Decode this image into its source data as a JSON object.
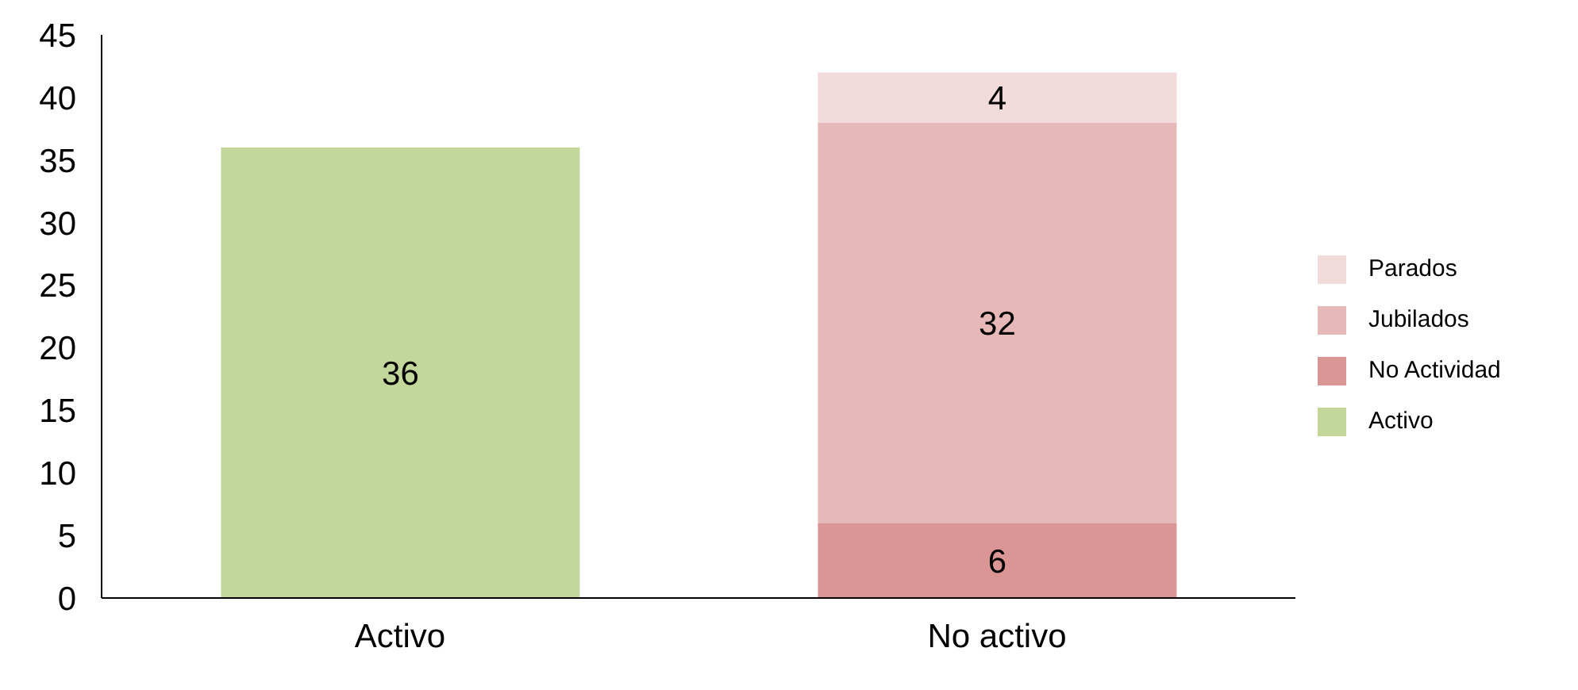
{
  "chart_data": {
    "type": "bar",
    "stacked": true,
    "categories": [
      "Activo",
      "No activo"
    ],
    "series": [
      {
        "name": "Activo",
        "color": "#c4d79b",
        "values": [
          36,
          null
        ]
      },
      {
        "name": "No Actividad",
        "color": "#da9694",
        "values": [
          null,
          6
        ]
      },
      {
        "name": "Jubilados",
        "color": "#e6b9b8",
        "values": [
          null,
          32
        ]
      },
      {
        "name": "Parados",
        "color": "#f2dcdb",
        "values": [
          null,
          4
        ]
      }
    ],
    "ylim": [
      0,
      45
    ],
    "yticks": [
      0,
      5,
      10,
      15,
      20,
      25,
      30,
      35,
      40,
      45
    ],
    "grid": false,
    "legend": "right",
    "data_labels": true
  }
}
